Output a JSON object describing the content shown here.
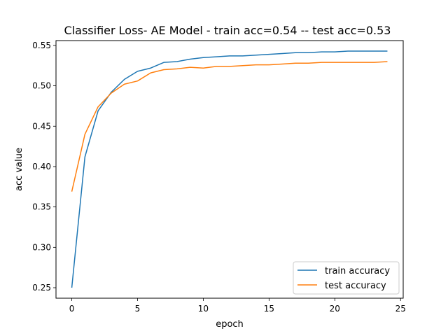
{
  "chart_data": {
    "type": "line",
    "title": "Classifier Loss-  AE Model - train acc=0.54 -- test acc=0.53",
    "xlabel": "epoch",
    "ylabel": "acc value",
    "xlim": [
      -1.2,
      25.2
    ],
    "ylim": [
      0.237,
      0.556
    ],
    "xticks": [
      0,
      5,
      10,
      15,
      20,
      25
    ],
    "yticks": [
      0.25,
      0.3,
      0.35,
      0.4,
      0.45,
      0.5,
      0.55
    ],
    "ytick_labels": [
      "0.25",
      "0.30",
      "0.35",
      "0.40",
      "0.45",
      "0.50",
      "0.55"
    ],
    "grid": false,
    "legend_position": "lower-right",
    "x": [
      0,
      1,
      2,
      3,
      4,
      5,
      6,
      7,
      8,
      9,
      10,
      11,
      12,
      13,
      14,
      15,
      16,
      17,
      18,
      19,
      20,
      21,
      22,
      23,
      24
    ],
    "series": [
      {
        "name": "train accuracy",
        "color": "#1f77b4",
        "values": [
          0.25,
          0.412,
          0.469,
          0.492,
          0.508,
          0.518,
          0.522,
          0.529,
          0.53,
          0.533,
          0.535,
          0.536,
          0.537,
          0.537,
          0.538,
          0.539,
          0.54,
          0.541,
          0.541,
          0.542,
          0.542,
          0.543,
          0.543,
          0.543,
          0.543
        ]
      },
      {
        "name": "test accuracy",
        "color": "#ff7f0e",
        "values": [
          0.369,
          0.44,
          0.474,
          0.491,
          0.502,
          0.506,
          0.516,
          0.52,
          0.521,
          0.523,
          0.522,
          0.524,
          0.524,
          0.525,
          0.526,
          0.526,
          0.527,
          0.528,
          0.528,
          0.529,
          0.529,
          0.529,
          0.529,
          0.529,
          0.53
        ]
      }
    ]
  }
}
